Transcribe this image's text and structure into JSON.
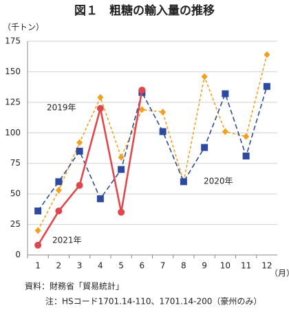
{
  "chart_data": {
    "type": "line",
    "title": "図１　粗糖の輸入量の推移",
    "y_unit": "（千トン）",
    "x_unit": "（月）",
    "categories": [
      "1",
      "2",
      "3",
      "4",
      "5",
      "6",
      "7",
      "8",
      "9",
      "10",
      "11",
      "12"
    ],
    "series": [
      {
        "name": "2019年",
        "color": "#f0a020",
        "dashed": true,
        "marker": "diamond",
        "values": [
          20,
          53,
          92,
          129,
          80,
          119,
          117,
          60,
          146,
          101,
          97,
          164
        ]
      },
      {
        "name": "2020年",
        "color": "#2e4a9e",
        "dashed": true,
        "marker": "square",
        "values": [
          36,
          60,
          85,
          46,
          70,
          133,
          101,
          60,
          88,
          132,
          81,
          138
        ]
      },
      {
        "name": "2021年",
        "color": "#e0474c",
        "dashed": false,
        "marker": "circle",
        "values": [
          8,
          36,
          57,
          120,
          35,
          135,
          null,
          null,
          null,
          null,
          null,
          null
        ]
      }
    ],
    "ylim": [
      0,
      175
    ],
    "yticks": [
      0,
      25,
      50,
      75,
      100,
      125,
      150,
      175
    ],
    "grid": true,
    "notes": [
      "資料：財務省「貿易統計」",
      "注：HSコード1701.14-110、1701.14-200（豪州のみ）"
    ]
  }
}
